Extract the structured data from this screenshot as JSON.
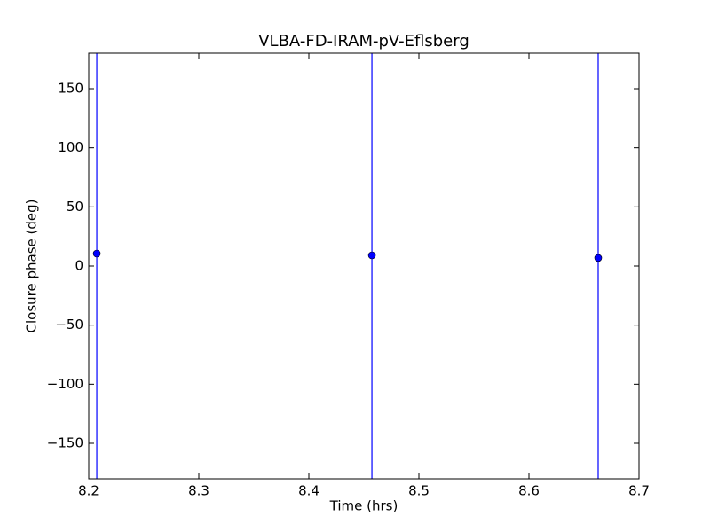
{
  "chart_data": {
    "type": "scatter",
    "title": "VLBA-FD-IRAM-pV-Eflsberg",
    "xlabel": "Time (hrs)",
    "ylabel": "Closure phase (deg)",
    "x": [
      8.2073,
      8.4573,
      8.6629
    ],
    "values": [
      10.5,
      9,
      6.8
    ],
    "errors": [
      200,
      200,
      200
    ],
    "color": "#0000ff",
    "xlim": [
      8.2,
      8.7
    ],
    "xticks": [
      8.2,
      8.3,
      8.4,
      8.5,
      8.6,
      8.7
    ],
    "ylim": [
      -180,
      180
    ],
    "yticks": [
      {
        "value": -150,
        "label": "−150"
      },
      {
        "value": -100,
        "label": "−100"
      },
      {
        "value": -50,
        "label": "−50"
      },
      0,
      50,
      100,
      150
    ],
    "grid": false
  }
}
